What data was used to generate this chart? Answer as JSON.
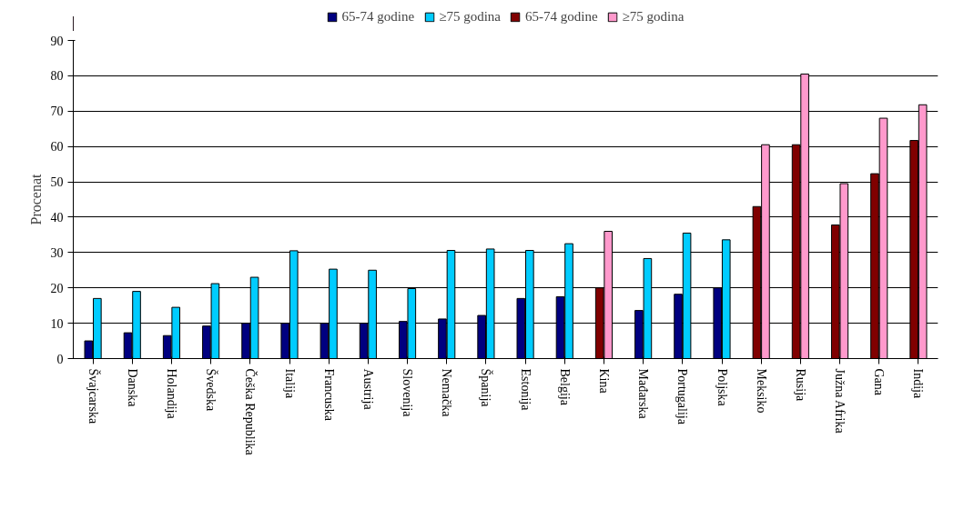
{
  "chart_data": {
    "type": "bar",
    "ylabel": "Procenat",
    "categories": [
      "Švajcarska",
      "Danska",
      "Holandija",
      "Švedska",
      "Češka Republika",
      "Italija",
      "Francuska",
      "Austrija",
      "Slovenija",
      "Nemačka",
      "Španija",
      "Estonija",
      "Belgija",
      "Kina",
      "Mađarska",
      "Portugalija",
      "Poljska",
      "Meksiko",
      "Rusija",
      "Južna Afrika",
      "Gana",
      "Indija"
    ],
    "series": [
      {
        "name": "65-74 godine",
        "color": "#000080",
        "values": [
          5,
          7.3,
          6.5,
          9.2,
          10,
          10,
          10,
          10,
          10.5,
          11.2,
          12.2,
          17,
          17.5,
          null,
          13.6,
          18.2,
          20,
          null,
          null,
          null,
          null,
          null
        ]
      },
      {
        "name": "≥75 godina",
        "color": "#00ccff",
        "values": [
          17,
          19,
          14.5,
          21.2,
          23,
          30.5,
          25.3,
          25,
          19.8,
          30.6,
          31,
          30.6,
          32.5,
          null,
          28.3,
          35.5,
          33.6,
          null,
          null,
          null,
          null,
          null
        ]
      },
      {
        "name": "65-74 godine",
        "color": "#800000",
        "values": [
          null,
          null,
          null,
          null,
          null,
          null,
          null,
          null,
          null,
          null,
          null,
          null,
          null,
          20,
          null,
          null,
          null,
          43,
          60.5,
          37.8,
          52.3,
          61.7
        ]
      },
      {
        "name": "≥75 godina",
        "color": "#ff99cc",
        "values": [
          null,
          null,
          null,
          null,
          null,
          null,
          null,
          null,
          null,
          null,
          null,
          null,
          null,
          36,
          null,
          null,
          null,
          60.5,
          80.5,
          49.5,
          68,
          71.8
        ]
      }
    ],
    "ylim": [
      0,
      90
    ],
    "yticks": [
      0,
      10,
      20,
      30,
      40,
      50,
      60,
      70,
      80,
      90
    ],
    "grid": "y",
    "legend": "top"
  }
}
